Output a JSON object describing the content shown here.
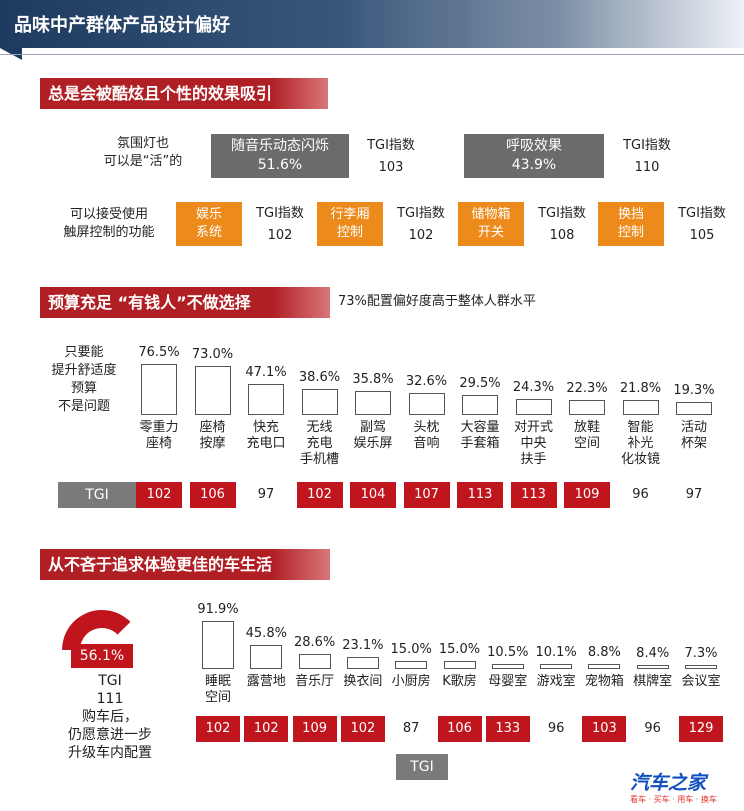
{
  "header": {
    "title": "品味中产群体产品设计偏好"
  },
  "section1": {
    "title": "总是会被酷炫且个性的效果吸引",
    "row1_label": [
      "氛围灯也",
      "可以是“活”的"
    ],
    "highlights": [
      {
        "name": "随音乐动态闪烁",
        "value": "51.6%",
        "tgi_label": "TGI指数",
        "tgi": "103"
      },
      {
        "name": "呼吸效果",
        "value": "43.9%",
        "tgi_label": "TGI指数",
        "tgi": "110"
      }
    ],
    "row2_label": [
      "可以接受使用",
      "触屏控制的功能"
    ],
    "functions": [
      {
        "name": [
          "娱乐",
          "系统"
        ],
        "tgi_label": "TGI指数",
        "tgi": "102"
      },
      {
        "name": [
          "行李厢",
          "控制"
        ],
        "tgi_label": "TGI指数",
        "tgi": "102"
      },
      {
        "name": [
          "储物箱",
          "开关"
        ],
        "tgi_label": "TGI指数",
        "tgi": "108"
      },
      {
        "name": [
          "换挡",
          "控制"
        ],
        "tgi_label": "TGI指数",
        "tgi": "105"
      }
    ]
  },
  "section2": {
    "title": "预算充足 “有钱人”不做选择",
    "note": "73%配置偏好度高于整体人群水平",
    "side_label": [
      "只要能",
      "提升舒适度",
      "预算",
      "不是问题"
    ],
    "tgi_label": "TGI",
    "colors": {
      "highlight": "#c0151c"
    }
  },
  "section3": {
    "title": "从不吝于追求体验更佳的车生活",
    "donut_value": "56.1%",
    "donut_tgi_label": "TGI",
    "donut_tgi": "111",
    "donut_caption": [
      "购车后，",
      "仍愿意进一步",
      "升级车内配置"
    ],
    "tgi_label": "TGI"
  },
  "logo": {
    "main": "汽车之家",
    "sub": "看车 · 买车 · 用车 · 换车"
  },
  "chart_data": [
    {
      "type": "bar",
      "categories": [
        "零重力座椅",
        "座椅按摩",
        "快充充电口",
        "无线充电手机槽",
        "副驾娱乐屏",
        "头枕音响",
        "大容量手套箱",
        "对开式中央扶手",
        "放鞋空间",
        "智能补光化妆镜",
        "活动杯架"
      ],
      "category_lines": [
        [
          "零重力",
          "座椅"
        ],
        [
          "座椅",
          "按摩"
        ],
        [
          "快充",
          "充电口"
        ],
        [
          "无线",
          "充电",
          "手机槽"
        ],
        [
          "副驾",
          "娱乐屏"
        ],
        [
          "头枕",
          "音响"
        ],
        [
          "大容量",
          "手套箱"
        ],
        [
          "对开式",
          "中央",
          "扶手"
        ],
        [
          "放鞋",
          "空间"
        ],
        [
          "智能",
          "补光",
          "化妆镜"
        ],
        [
          "活动",
          "杯架"
        ]
      ],
      "values": [
        76.5,
        73.0,
        47.1,
        38.6,
        35.8,
        32.6,
        29.5,
        24.3,
        22.3,
        21.8,
        19.3
      ],
      "labels": [
        "76.5%",
        "73.0%",
        "47.1%",
        "38.6%",
        "35.8%",
        "32.6%",
        "29.5%",
        "24.3%",
        "22.3%",
        "21.8%",
        "19.3%"
      ],
      "tgi": [
        102,
        106,
        97,
        102,
        104,
        107,
        113,
        113,
        109,
        96,
        97
      ],
      "tgi_highlight": [
        true,
        true,
        false,
        true,
        true,
        true,
        true,
        true,
        true,
        false,
        false
      ]
    },
    {
      "type": "bar",
      "categories": [
        "睡眠空间",
        "露营地",
        "音乐厅",
        "换衣间",
        "小厨房",
        "K歌房",
        "母婴室",
        "游戏室",
        "宠物箱",
        "棋牌室",
        "会议室"
      ],
      "category_lines": [
        [
          "睡眠",
          "空间"
        ],
        [
          "露营地"
        ],
        [
          "音乐厅"
        ],
        [
          "换衣间"
        ],
        [
          "小厨房"
        ],
        [
          "K歌房"
        ],
        [
          "母婴室"
        ],
        [
          "游戏室"
        ],
        [
          "宠物箱"
        ],
        [
          "棋牌室"
        ],
        [
          "会议室"
        ]
      ],
      "values": [
        91.9,
        45.8,
        28.6,
        23.1,
        15.0,
        15.0,
        10.5,
        10.1,
        8.8,
        8.4,
        7.3
      ],
      "labels": [
        "91.9%",
        "45.8%",
        "28.6%",
        "23.1%",
        "15.0%",
        "15.0%",
        "10.5%",
        "10.1%",
        "8.8%",
        "8.4%",
        "7.3%"
      ],
      "tgi": [
        102,
        102,
        109,
        102,
        87,
        106,
        133,
        96,
        103,
        96,
        129
      ],
      "tgi_highlight": [
        true,
        true,
        true,
        true,
        false,
        true,
        true,
        false,
        true,
        false,
        true
      ]
    },
    {
      "type": "pie",
      "values": [
        56.1,
        43.9
      ],
      "labels": [
        "56.1%",
        ""
      ]
    }
  ]
}
